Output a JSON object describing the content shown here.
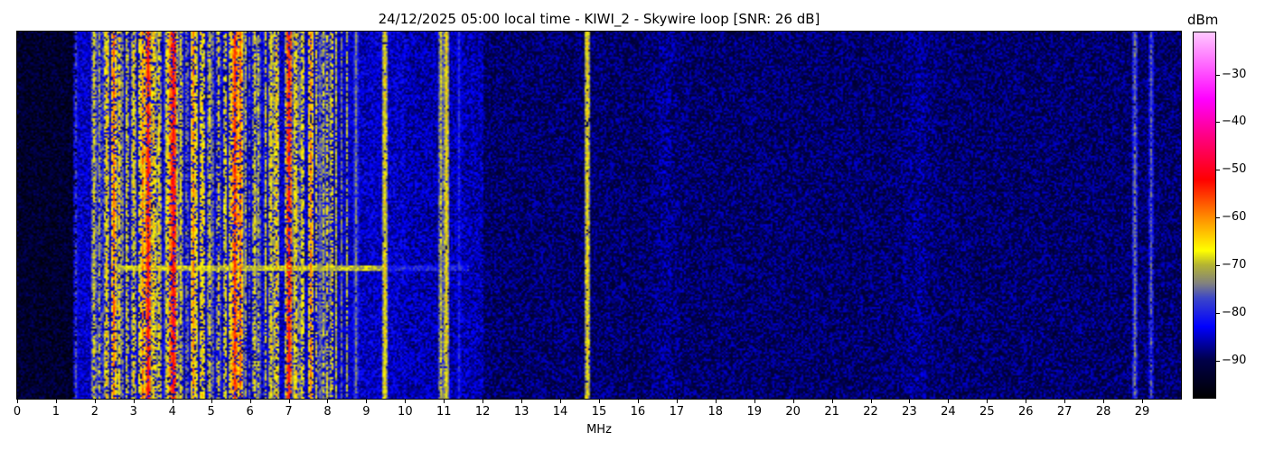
{
  "chart_data": {
    "type": "heatmap",
    "title": "24/12/2025 05:00 local time - KIWI_2 - Skywire loop [SNR: 26 dB]",
    "xlabel": "MHz",
    "xlim": [
      0,
      30
    ],
    "x_ticks": [
      "0",
      "1",
      "2",
      "3",
      "4",
      "5",
      "6",
      "7",
      "8",
      "9",
      "10",
      "11",
      "12",
      "13",
      "14",
      "15",
      "16",
      "17",
      "18",
      "19",
      "20",
      "21",
      "22",
      "23",
      "24",
      "25",
      "26",
      "27",
      "28",
      "29"
    ],
    "colorbar": {
      "label": "dBm",
      "range": [
        -98,
        -21
      ],
      "ticks": [
        "−30",
        "−40",
        "−50",
        "−60",
        "−70",
        "−80",
        "−90"
      ],
      "tick_values": [
        -30,
        -40,
        -50,
        -60,
        -70,
        -80,
        -90
      ],
      "colormap": [
        [
          -98,
          "#000000"
        ],
        [
          -90,
          "#00004a"
        ],
        [
          -83,
          "#0000ff"
        ],
        [
          -77,
          "#3c46c8"
        ],
        [
          -74,
          "#808080"
        ],
        [
          -70,
          "#b4b432"
        ],
        [
          -67,
          "#ffff00"
        ],
        [
          -60,
          "#ff8c00"
        ],
        [
          -52,
          "#ff0000"
        ],
        [
          -43,
          "#ff0080"
        ],
        [
          -35,
          "#ff00ff"
        ],
        [
          -21,
          "#ffc8ff"
        ]
      ]
    },
    "background_noise_dbm": [
      {
        "from_mhz": 0,
        "to_mhz": 1.5,
        "level": -93
      },
      {
        "from_mhz": 1.5,
        "to_mhz": 10,
        "level": -85
      },
      {
        "from_mhz": 10,
        "to_mhz": 12,
        "level": -86
      },
      {
        "from_mhz": 12,
        "to_mhz": 16,
        "level": -89
      },
      {
        "from_mhz": 16,
        "to_mhz": 30,
        "level": -89
      }
    ],
    "signals": [
      {
        "mhz": 1.5,
        "level": -78
      },
      {
        "mhz": 1.95,
        "level": -68
      },
      {
        "mhz": 2.3,
        "level": -65
      },
      {
        "mhz": 2.45,
        "level": -58
      },
      {
        "mhz": 2.6,
        "level": -66
      },
      {
        "mhz": 3.0,
        "level": -66
      },
      {
        "mhz": 3.2,
        "level": -60
      },
      {
        "mhz": 3.35,
        "level": -52
      },
      {
        "mhz": 3.5,
        "level": -64
      },
      {
        "mhz": 3.65,
        "level": -66
      },
      {
        "mhz": 3.9,
        "level": -60
      },
      {
        "mhz": 4.0,
        "level": -50
      },
      {
        "mhz": 4.2,
        "level": -68
      },
      {
        "mhz": 4.5,
        "level": -60
      },
      {
        "mhz": 4.75,
        "level": -66
      },
      {
        "mhz": 4.95,
        "level": -68
      },
      {
        "mhz": 5.5,
        "level": -64
      },
      {
        "mhz": 5.6,
        "level": -54
      },
      {
        "mhz": 5.75,
        "level": -58
      },
      {
        "mhz": 6.1,
        "level": -68
      },
      {
        "mhz": 6.5,
        "level": -66
      },
      {
        "mhz": 6.65,
        "level": -64
      },
      {
        "mhz": 6.95,
        "level": -64
      },
      {
        "mhz": 7.0,
        "level": -52
      },
      {
        "mhz": 7.3,
        "level": -68
      },
      {
        "mhz": 7.55,
        "level": -60
      },
      {
        "mhz": 7.85,
        "level": -70
      },
      {
        "mhz": 8.7,
        "level": -74
      },
      {
        "mhz": 9.45,
        "level": -66
      },
      {
        "mhz": 10.9,
        "level": -70
      },
      {
        "mhz": 11.05,
        "level": -66
      },
      {
        "mhz": 11.35,
        "level": -80
      },
      {
        "mhz": 14.67,
        "level": -66
      },
      {
        "mhz": 28.8,
        "level": -74
      },
      {
        "mhz": 29.2,
        "level": -76
      }
    ]
  }
}
